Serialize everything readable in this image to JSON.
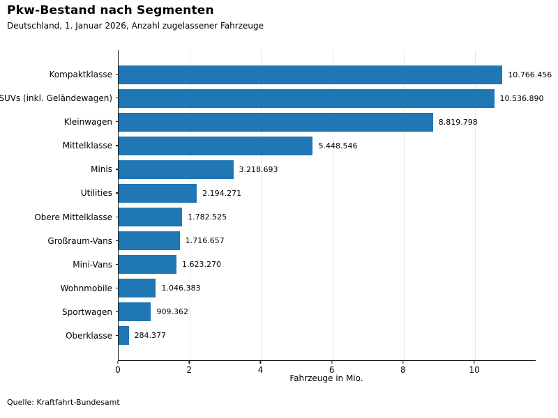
{
  "chart_data": {
    "type": "bar",
    "orientation": "horizontal",
    "title": "Pkw-Bestand nach Segmenten",
    "subtitle": "Deutschland, 1. Januar 2026, Anzahl zugelassener Fahrzeuge",
    "xlabel": "Fahrzeuge in Mio.",
    "source": "Quelle: Kraftfahrt-Bundesamt",
    "categories": [
      "Kompaktklasse",
      "SUVs (inkl. Geländewagen)",
      "Kleinwagen",
      "Mittelklasse",
      "Minis",
      "Utilities",
      "Obere Mittelklasse",
      "Großraum-Vans",
      "Mini-Vans",
      "Wohnmobile",
      "Sportwagen",
      "Oberklasse"
    ],
    "values": [
      10766456,
      10536890,
      8819798,
      5448546,
      3218693,
      2194271,
      1782525,
      1716657,
      1623270,
      1046383,
      909362,
      284377
    ],
    "value_labels": [
      "10.766.456",
      "10.536.890",
      "8.819.798",
      "5.448.546",
      "3.218.693",
      "2.194.271",
      "1.782.525",
      "1.716.657",
      "1.623.270",
      "1.046.383",
      "909.362",
      "284.377"
    ],
    "x_ticks": [
      0,
      2,
      4,
      6,
      8,
      10
    ],
    "xlim": [
      0,
      11.7
    ],
    "grid": "vertical-light",
    "legend": "none",
    "bar_color": "#1f77b4",
    "gridline_color": "#e6e6e6",
    "spine_color": "#1a1a1a"
  }
}
